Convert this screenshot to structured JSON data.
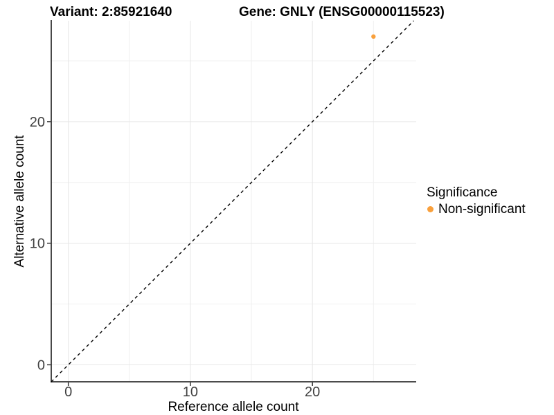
{
  "chart_data": {
    "type": "scatter",
    "title_left": "Variant: 2:85921640",
    "title_right": "Gene: GNLY (ENSG00000115523)",
    "xlabel": "Reference allele count",
    "ylabel": "Alternative allele count",
    "xlim": [
      -1.4,
      28.5
    ],
    "ylim": [
      -1.4,
      28.3
    ],
    "x_ticks": {
      "values": [
        0,
        10,
        20
      ],
      "labels": [
        "0",
        "10",
        "20"
      ]
    },
    "y_ticks": {
      "values": [
        0,
        10,
        20
      ],
      "labels": [
        "0",
        "10",
        "20"
      ]
    },
    "x_minor": [
      5,
      15,
      25
    ],
    "y_minor": [
      5,
      15,
      25
    ],
    "grid": "major and minor gridlines on white background",
    "reference_line": {
      "kind": "identity y=x",
      "style": "dashed",
      "color": "#000000"
    },
    "series": [
      {
        "name": "Non-significant",
        "color": "#F9A03C",
        "points": [
          [
            25,
            27
          ]
        ]
      }
    ],
    "legend": {
      "title": "Significance",
      "position": "right",
      "entries": [
        {
          "label": "Non-significant",
          "color": "#F9A03C"
        }
      ]
    },
    "theme": {
      "background": "#ffffff",
      "grid_major": "#e6e6e6",
      "grid_minor": "#f0f0f0",
      "axis_line": "#333333",
      "tick_color": "#333333",
      "tick_label_color": "#404040"
    }
  }
}
